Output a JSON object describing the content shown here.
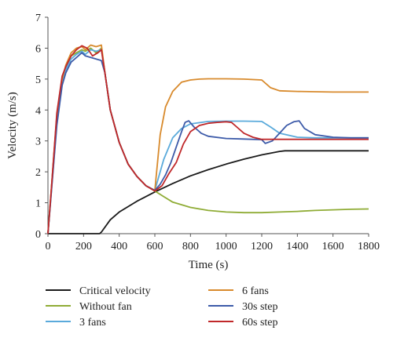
{
  "chart_data": {
    "type": "line",
    "title": "",
    "xlabel": "Time (s)",
    "ylabel": "Velocity (m/s)",
    "xlim": [
      0,
      1800
    ],
    "ylim": [
      0,
      7
    ],
    "xticks": [
      0,
      200,
      400,
      600,
      800,
      1000,
      1200,
      1400,
      1600,
      1800
    ],
    "yticks": [
      0,
      1,
      2,
      3,
      4,
      5,
      6,
      7
    ],
    "grid": false,
    "legend_position": "bottom",
    "series": [
      {
        "name": "Critical velocity",
        "color": "#1a1a1a",
        "x": [
          0,
          290,
          300,
          350,
          400,
          500,
          600,
          700,
          800,
          900,
          1000,
          1100,
          1200,
          1300,
          1330,
          1400,
          1600,
          1800
        ],
        "y": [
          0,
          0,
          0.05,
          0.45,
          0.7,
          1.05,
          1.35,
          1.62,
          1.87,
          2.07,
          2.25,
          2.41,
          2.55,
          2.66,
          2.68,
          2.68,
          2.68,
          2.68
        ]
      },
      {
        "name": "Without fan",
        "color": "#8fac35",
        "x": [
          0,
          20,
          50,
          80,
          100,
          130,
          160,
          190,
          210,
          240,
          270,
          300,
          320,
          350,
          400,
          450,
          500,
          550,
          600,
          650,
          700,
          800,
          900,
          1000,
          1100,
          1200,
          1300,
          1400,
          1500,
          1600,
          1700,
          1800
        ],
        "y": [
          0,
          1.5,
          3.8,
          5.0,
          5.4,
          5.75,
          5.85,
          5.95,
          5.9,
          6.0,
          5.85,
          6.0,
          5.2,
          4.0,
          2.95,
          2.25,
          1.85,
          1.55,
          1.38,
          1.2,
          1.02,
          0.85,
          0.75,
          0.7,
          0.68,
          0.68,
          0.7,
          0.72,
          0.75,
          0.77,
          0.79,
          0.8
        ]
      },
      {
        "name": "3 fans",
        "color": "#5aaadb",
        "x": [
          0,
          20,
          50,
          80,
          100,
          130,
          160,
          190,
          210,
          240,
          270,
          300,
          320,
          350,
          400,
          450,
          500,
          550,
          600,
          650,
          700,
          750,
          800,
          900,
          1000,
          1100,
          1200,
          1250,
          1300,
          1400,
          1500,
          1600,
          1700,
          1800
        ],
        "y": [
          0,
          1.4,
          3.6,
          4.9,
          5.3,
          5.65,
          5.8,
          5.9,
          5.8,
          5.95,
          5.9,
          5.95,
          5.2,
          4.0,
          2.95,
          2.25,
          1.85,
          1.55,
          1.4,
          2.4,
          3.1,
          3.4,
          3.55,
          3.63,
          3.64,
          3.64,
          3.63,
          3.45,
          3.25,
          3.12,
          3.1,
          3.1,
          3.1,
          3.1
        ]
      },
      {
        "name": "6 fans",
        "color": "#d88a2c",
        "x": [
          0,
          20,
          50,
          80,
          100,
          130,
          160,
          190,
          210,
          240,
          270,
          300,
          320,
          350,
          400,
          450,
          500,
          550,
          600,
          630,
          660,
          700,
          750,
          800,
          850,
          900,
          1000,
          1100,
          1200,
          1250,
          1300,
          1400,
          1500,
          1600,
          1700,
          1800
        ],
        "y": [
          0,
          1.5,
          3.8,
          5.0,
          5.45,
          5.85,
          6.0,
          6.05,
          5.95,
          6.1,
          6.05,
          6.1,
          5.2,
          4.0,
          2.95,
          2.25,
          1.85,
          1.55,
          1.4,
          3.2,
          4.1,
          4.6,
          4.9,
          4.97,
          5.0,
          5.01,
          5.01,
          5.0,
          4.97,
          4.72,
          4.62,
          4.6,
          4.59,
          4.58,
          4.58,
          4.58
        ]
      },
      {
        "name": "30s step",
        "color": "#3d5ba9",
        "x": [
          0,
          20,
          50,
          80,
          100,
          130,
          160,
          190,
          210,
          240,
          270,
          300,
          320,
          350,
          400,
          450,
          500,
          550,
          600,
          630,
          660,
          690,
          720,
          750,
          770,
          790,
          820,
          860,
          900,
          1000,
          1100,
          1200,
          1220,
          1260,
          1300,
          1340,
          1380,
          1410,
          1440,
          1500,
          1600,
          1700,
          1800
        ],
        "y": [
          0,
          1.4,
          3.5,
          4.8,
          5.2,
          5.55,
          5.7,
          5.85,
          5.75,
          5.7,
          5.65,
          5.6,
          5.2,
          4.0,
          2.95,
          2.25,
          1.85,
          1.55,
          1.4,
          1.6,
          1.9,
          2.3,
          2.8,
          3.3,
          3.6,
          3.65,
          3.45,
          3.25,
          3.15,
          3.08,
          3.06,
          3.04,
          2.92,
          3.0,
          3.25,
          3.5,
          3.62,
          3.65,
          3.4,
          3.2,
          3.12,
          3.1,
          3.1
        ]
      },
      {
        "name": "60s step",
        "color": "#c0282a",
        "x": [
          0,
          20,
          50,
          80,
          100,
          130,
          160,
          190,
          220,
          250,
          280,
          300,
          320,
          350,
          400,
          450,
          500,
          550,
          600,
          640,
          680,
          720,
          760,
          800,
          850,
          900,
          950,
          1000,
          1030,
          1060,
          1100,
          1150,
          1200,
          1250,
          1300,
          1400,
          1500,
          1600,
          1700,
          1800
        ],
        "y": [
          0,
          1.5,
          3.9,
          5.1,
          5.4,
          5.75,
          5.95,
          6.08,
          6.0,
          5.75,
          5.85,
          5.95,
          5.2,
          4.0,
          2.95,
          2.25,
          1.85,
          1.55,
          1.38,
          1.55,
          1.95,
          2.3,
          2.9,
          3.3,
          3.5,
          3.57,
          3.6,
          3.62,
          3.6,
          3.45,
          3.25,
          3.12,
          3.05,
          3.05,
          3.05,
          3.05,
          3.05,
          3.05,
          3.05,
          3.05
        ]
      }
    ]
  }
}
